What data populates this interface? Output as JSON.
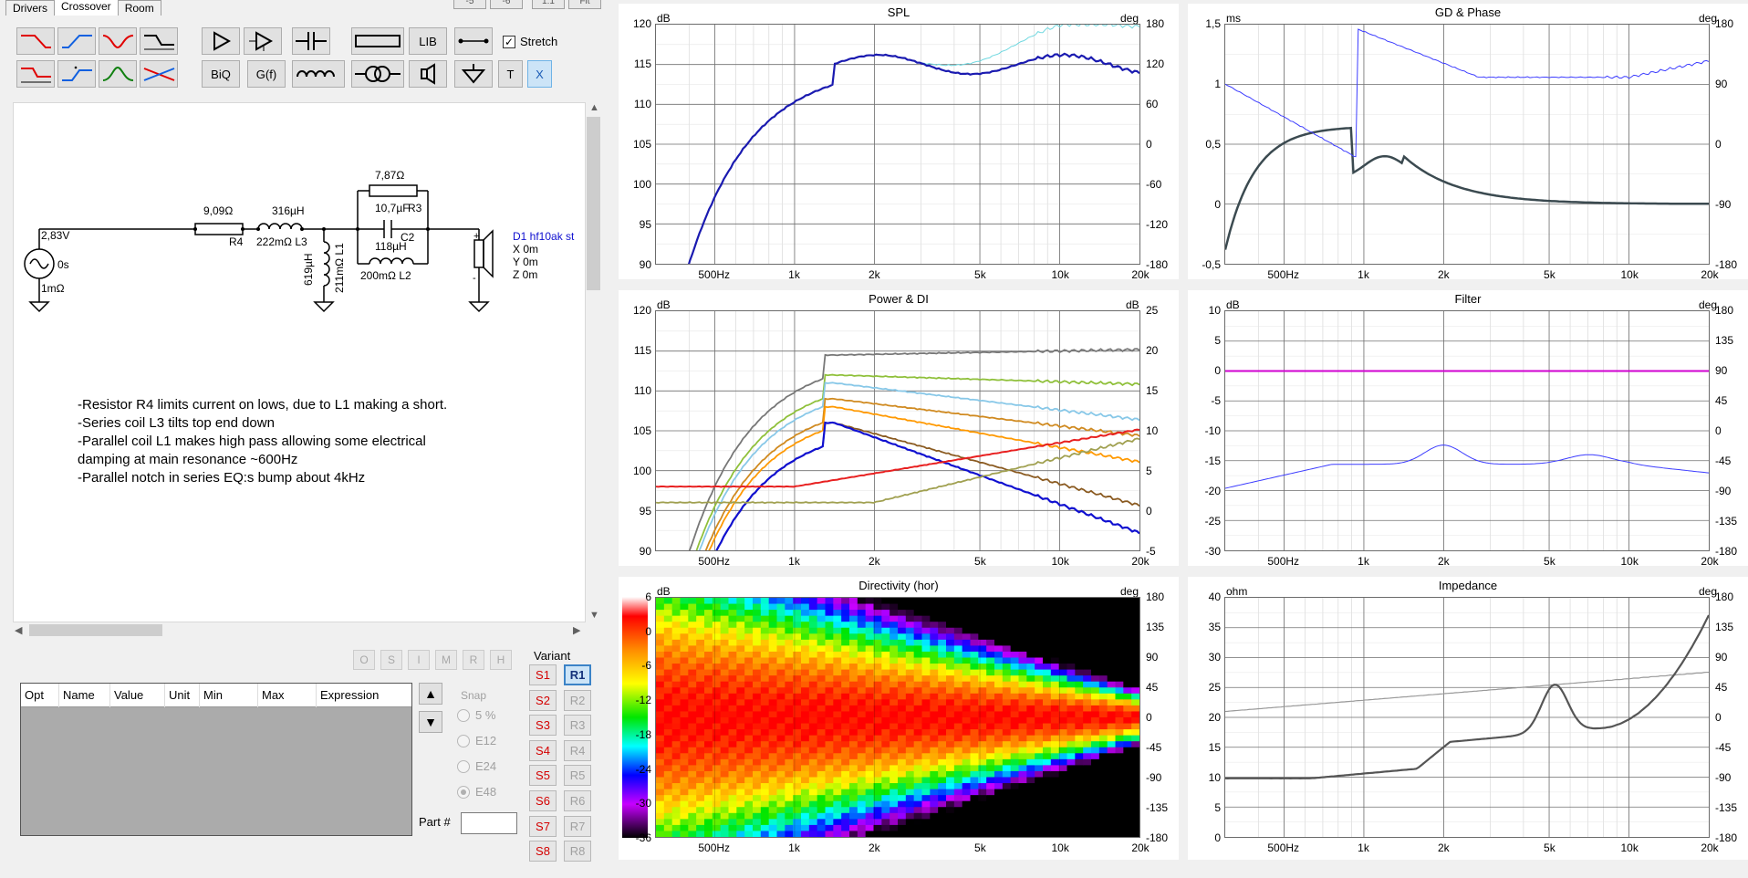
{
  "tabs": [
    "Drivers",
    "Crossover",
    "Room"
  ],
  "top_buttons": [
    "-5",
    "-6",
    "1:1",
    "Fit"
  ],
  "toolbar": {
    "biq": "BiQ",
    "gf": "G(f)",
    "lib": "LIB",
    "t": "T",
    "x": "X",
    "stretch": "Stretch"
  },
  "schematic": {
    "r4_value": "9,09Ω",
    "r4": "R4",
    "l3_value": "316µH",
    "l3_label": "222mΩ L3",
    "l1_value": "619µH",
    "l1_label": "211mΩ L1",
    "r3_value": "7,87Ω",
    "c2_value": "10,7µF",
    "r3": "R3",
    "c2": "C2",
    "l2_value": "118µH",
    "l2_label": "200mΩ L2",
    "src_v": "2,83V",
    "src_t": "0s",
    "src_r": "1mΩ",
    "driver": "D1 hf10ak st",
    "dx": "X 0m",
    "dy": "Y 0m",
    "dz": "Z 0m"
  },
  "notes": [
    "-Resistor R4 limits current on lows, due to L1 making a short.",
    "-Series coil L3 tilts top end down",
    "-Parallel coil L1 makes high pass allowing some electrical",
    "damping at main resonance ~600Hz",
    "-Parallel notch in series EQ:s bump about 4kHz"
  ],
  "oh_buttons": [
    "O",
    "S",
    "I",
    "M",
    "R",
    "H"
  ],
  "grid_headers": [
    "Opt",
    "Name",
    "Value",
    "Unit",
    "Min",
    "Max",
    "Expression"
  ],
  "snap": {
    "label": "Snap",
    "options": [
      "5 %",
      "E12",
      "E24",
      "E48"
    ],
    "selected": "E48"
  },
  "variant": {
    "label": "Variant",
    "s": [
      "S1",
      "S2",
      "S3",
      "S4",
      "S5",
      "S6",
      "S7",
      "S8"
    ],
    "r": [
      "R1",
      "R2",
      "R3",
      "R4",
      "R5",
      "R6",
      "R7",
      "R8"
    ],
    "active": "R1"
  },
  "part_label": "Part #",
  "colors": {
    "spl_main": "#1a1ab0",
    "spl_ref": "#70d8e0",
    "phase": "#3c3cff",
    "gd": "#3b4a50",
    "filter_mag": "#d000d0",
    "imp_mag": "#555555",
    "imp_phase": "#999999"
  },
  "x_ticks": [
    "500Hz",
    "1k",
    "2k",
    "5k",
    "10k",
    "20k"
  ],
  "panels": {
    "spl": {
      "title": "SPL",
      "left_unit": "dB",
      "right_unit": "deg",
      "left_ticks": [
        "120",
        "115",
        "110",
        "105",
        "100",
        "95",
        "90"
      ],
      "right_ticks": [
        "180",
        "120",
        "60",
        "0",
        "-60",
        "-120",
        "-180"
      ]
    },
    "gd": {
      "title": "GD & Phase",
      "left_unit": "ms",
      "right_unit": "deg",
      "left_ticks": [
        "1,5",
        "1",
        "0,5",
        "0",
        "-0,5"
      ],
      "right_ticks": [
        "180",
        "90",
        "0",
        "-90",
        "-180"
      ]
    },
    "power": {
      "title": "Power & DI",
      "left_unit": "dB",
      "right_unit": "dB",
      "left_ticks": [
        "120",
        "115",
        "110",
        "105",
        "100",
        "95",
        "90"
      ],
      "right_ticks": [
        "25",
        "20",
        "15",
        "10",
        "5",
        "0",
        "-5"
      ]
    },
    "filter": {
      "title": "Filter",
      "left_unit": "dB",
      "right_unit": "deg",
      "left_ticks": [
        "10",
        "5",
        "0",
        "-5",
        "-10",
        "-15",
        "-20",
        "-25",
        "-30"
      ],
      "right_ticks": [
        "180",
        "135",
        "90",
        "45",
        "0",
        "-45",
        "-90",
        "-135",
        "-180"
      ]
    },
    "dir": {
      "title": "Directivity (hor)",
      "left_unit": "dB",
      "right_unit": "deg",
      "left_ticks": [
        "6",
        "0",
        "-6",
        "-12",
        "-18",
        "-24",
        "-30",
        "-36"
      ],
      "right_ticks": [
        "180",
        "135",
        "90",
        "45",
        "0",
        "-45",
        "-90",
        "-135",
        "-180"
      ]
    },
    "imp": {
      "title": "Impedance",
      "left_unit": "ohm",
      "right_unit": "deg",
      "left_ticks": [
        "40",
        "35",
        "30",
        "25",
        "20",
        "15",
        "10",
        "5",
        "0"
      ],
      "right_ticks": [
        "180",
        "135",
        "90",
        "45",
        "0",
        "-45",
        "-90",
        "-135",
        "-180"
      ]
    }
  }
}
